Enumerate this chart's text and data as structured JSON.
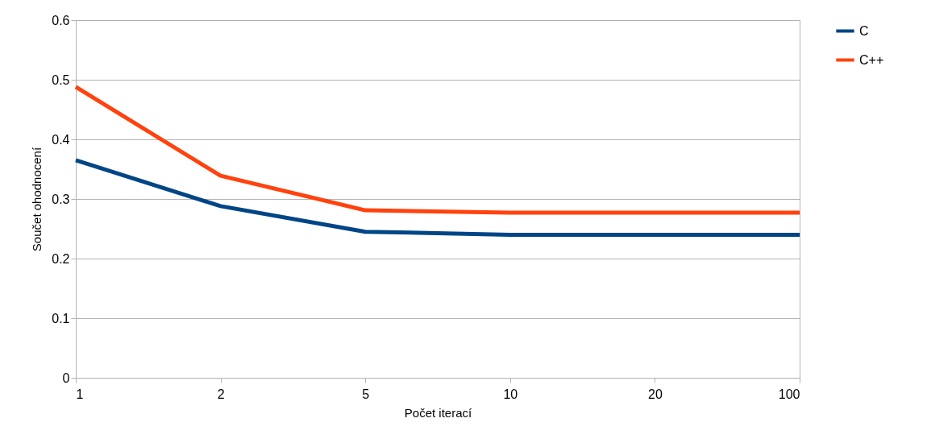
{
  "chart_data": {
    "type": "line",
    "xlabel": "Počet iterací",
    "ylabel": "Součet ohodnocení",
    "categories": [
      "1",
      "2",
      "5",
      "10",
      "20",
      "100"
    ],
    "series": [
      {
        "name": "C",
        "color": "#004586",
        "values": [
          0.365,
          0.288,
          0.245,
          0.24,
          0.24,
          0.24
        ]
      },
      {
        "name": "C++",
        "color": "#ff420e",
        "values": [
          0.488,
          0.339,
          0.281,
          0.277,
          0.277,
          0.277
        ]
      }
    ],
    "ylim": [
      0,
      0.6
    ],
    "yticks": [
      0,
      0.1,
      0.2,
      0.3,
      0.4,
      0.5,
      0.6
    ],
    "grid": "y",
    "legend": "right",
    "marker": "none",
    "line_style": "solid"
  }
}
